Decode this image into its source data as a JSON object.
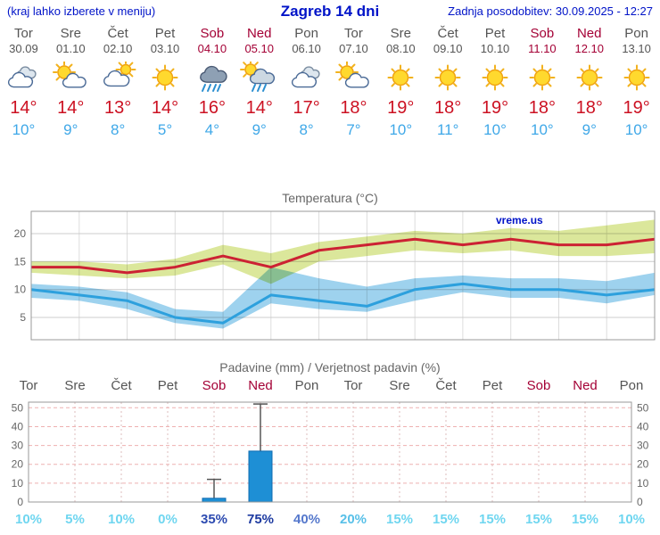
{
  "header": {
    "left_note": "(kraj lahko izberete v meniju)",
    "title": "Zagreb 14 dni",
    "updated": "Zadnja posodobitev: 30.09.2025 - 12:27"
  },
  "days": [
    {
      "name": "Tor",
      "date": "30.09",
      "weekend": false,
      "icon": "cloudy",
      "tmax_label": "14°",
      "tmin_label": "10°"
    },
    {
      "name": "Sre",
      "date": "01.10",
      "weekend": false,
      "icon": "partly-cloudy",
      "tmax_label": "14°",
      "tmin_label": "9°"
    },
    {
      "name": "Čet",
      "date": "02.10",
      "weekend": false,
      "icon": "mostly-cloudy",
      "tmax_label": "13°",
      "tmin_label": "8°"
    },
    {
      "name": "Pet",
      "date": "03.10",
      "weekend": false,
      "icon": "sunny",
      "tmax_label": "14°",
      "tmin_label": "5°"
    },
    {
      "name": "Sob",
      "date": "04.10",
      "weekend": true,
      "icon": "rain",
      "tmax_label": "16°",
      "tmin_label": "4°"
    },
    {
      "name": "Ned",
      "date": "05.10",
      "weekend": true,
      "icon": "showers-sun",
      "tmax_label": "14°",
      "tmin_label": "9°"
    },
    {
      "name": "Pon",
      "date": "06.10",
      "weekend": false,
      "icon": "cloudy",
      "tmax_label": "17°",
      "tmin_label": "8°"
    },
    {
      "name": "Tor",
      "date": "07.10",
      "weekend": false,
      "icon": "partly-cloudy",
      "tmax_label": "18°",
      "tmin_label": "7°"
    },
    {
      "name": "Sre",
      "date": "08.10",
      "weekend": false,
      "icon": "sunny",
      "tmax_label": "19°",
      "tmin_label": "10°"
    },
    {
      "name": "Čet",
      "date": "09.10",
      "weekend": false,
      "icon": "sunny",
      "tmax_label": "18°",
      "tmin_label": "11°"
    },
    {
      "name": "Pet",
      "date": "10.10",
      "weekend": false,
      "icon": "sunny",
      "tmax_label": "19°",
      "tmin_label": "10°"
    },
    {
      "name": "Sob",
      "date": "11.10",
      "weekend": true,
      "icon": "sunny",
      "tmax_label": "18°",
      "tmin_label": "10°"
    },
    {
      "name": "Ned",
      "date": "12.10",
      "weekend": true,
      "icon": "sunny",
      "tmax_label": "18°",
      "tmin_label": "9°"
    },
    {
      "name": "Pon",
      "date": "13.10",
      "weekend": false,
      "icon": "sunny",
      "tmax_label": "19°",
      "tmin_label": "10°"
    }
  ],
  "colors": {
    "header_blue": "#0013c8",
    "weekend_red": "#a40035",
    "tmax_red": "#cc1122",
    "tmin_blue": "#3fa8e8",
    "tmax_line": "#cc2233",
    "tmin_line": "#2da0dd",
    "tmax_band": "#dbe79b",
    "tmin_band": "#9ed2ee",
    "bar_blue": "#1e8fd5",
    "grid_pink": "#eeb0b0"
  },
  "chart_data": [
    {
      "type": "line",
      "title": "Temperatura (°C)",
      "x_labels": [
        "Tor",
        "Sre",
        "Čet",
        "Pet",
        "Sob",
        "Ned",
        "Pon",
        "Tor",
        "Sre",
        "Čet",
        "Pet",
        "Sob",
        "Ned",
        "Pon"
      ],
      "ylim": [
        1,
        24
      ],
      "yticks": [
        5,
        10,
        15,
        20
      ],
      "grid": true,
      "watermark": "vreme.us",
      "series": [
        {
          "name": "tmax",
          "color": "#cc2233",
          "values": [
            14,
            14,
            13,
            14,
            16,
            14,
            17,
            18,
            19,
            18,
            19,
            18,
            18,
            19
          ]
        },
        {
          "name": "tmin",
          "color": "#2da0dd",
          "values": [
            10,
            9,
            8,
            5,
            4,
            9,
            8,
            7,
            10,
            11,
            10,
            10,
            9,
            10
          ]
        }
      ],
      "bands": [
        {
          "name": "tmax-range",
          "color": "#dbe79b",
          "upper": [
            15,
            15,
            14.5,
            15.5,
            18,
            16.5,
            18.5,
            19.5,
            20.5,
            20,
            21,
            20.5,
            21.5,
            22.5
          ],
          "lower": [
            13,
            12.5,
            12,
            12.5,
            14.5,
            11,
            15,
            16,
            17,
            16.5,
            17,
            16,
            16,
            16.5
          ]
        },
        {
          "name": "tmin-range",
          "color": "#9ed2ee",
          "upper": [
            11,
            10.5,
            9.5,
            6.5,
            6,
            14,
            12,
            10.5,
            12,
            12.5,
            12,
            12,
            11.5,
            13
          ],
          "lower": [
            8.5,
            8,
            6.5,
            4,
            3,
            7.5,
            6.5,
            6,
            8,
            9.5,
            8.5,
            8.5,
            7.5,
            9
          ]
        }
      ]
    },
    {
      "type": "bar",
      "title": "Padavine (mm) / Verjetnost padavin (%)",
      "categories": [
        "Tor",
        "Sre",
        "Čet",
        "Pet",
        "Sob",
        "Ned",
        "Pon",
        "Tor",
        "Sre",
        "Čet",
        "Pet",
        "Sob",
        "Ned",
        "Pon"
      ],
      "weekend": [
        false,
        false,
        false,
        false,
        true,
        true,
        false,
        false,
        false,
        false,
        false,
        true,
        true,
        false
      ],
      "values_mm": [
        0,
        0,
        0,
        0,
        2,
        27,
        0,
        0,
        0,
        0,
        0,
        0,
        0,
        0
      ],
      "whisker_max": [
        0,
        0,
        0,
        0,
        12,
        52,
        0,
        0,
        0,
        0,
        0,
        0,
        0,
        0
      ],
      "probabilities": [
        10,
        5,
        10,
        0,
        35,
        75,
        40,
        20,
        15,
        15,
        15,
        15,
        15,
        10
      ],
      "prob_labels": [
        "10%",
        "5%",
        "10%",
        "0%",
        "35%",
        "75%",
        "40%",
        "20%",
        "15%",
        "15%",
        "15%",
        "15%",
        "15%",
        "10%"
      ],
      "ylim": [
        0,
        53
      ],
      "yticks": [
        0,
        10,
        20,
        30,
        40,
        50
      ],
      "bar_color": "#1e8fd5",
      "legend": "none"
    }
  ]
}
